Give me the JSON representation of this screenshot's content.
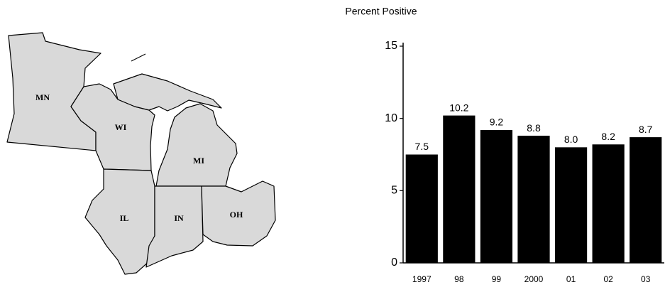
{
  "map": {
    "labels": [
      "MN",
      "WI",
      "MI",
      "IL",
      "IN",
      "OH"
    ]
  },
  "chart_data": {
    "type": "bar",
    "title": "Percent Positive",
    "categories": [
      "1997",
      "98",
      "99",
      "2000",
      "01",
      "02",
      "03"
    ],
    "values": [
      7.5,
      10.2,
      9.2,
      8.8,
      8.0,
      8.2,
      8.7
    ],
    "value_labels": [
      "7.5",
      "10.2",
      "9.2",
      "8.8",
      "8.0",
      "8.2",
      "8.7"
    ],
    "color": "#000000",
    "ylim": [
      0,
      15
    ],
    "yticks": [
      0,
      5,
      10,
      15
    ],
    "grid": false
  }
}
